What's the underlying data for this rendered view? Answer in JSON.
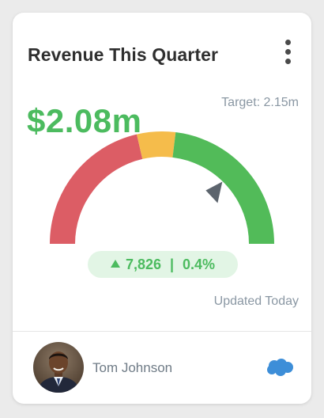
{
  "card": {
    "title": "Revenue This Quarter",
    "menu_icon": "more-vertical-icon"
  },
  "metric": {
    "value": "$2.08m",
    "target": "Target: 2.15m",
    "gauge_fraction": 0.967
  },
  "delta": {
    "icon": "arrow-up-icon",
    "count": "7,826",
    "separator": "|",
    "percent": "0.4%"
  },
  "updated": "Updated Today",
  "owner": {
    "name": "Tom Johnson",
    "avatar_icon": "avatar-photo",
    "source_icon": "salesforce-cloud-icon"
  },
  "colors": {
    "gauge_red": "#dc5d65",
    "gauge_yellow": "#f5bc4b",
    "gauge_green": "#52bb59",
    "accent_green": "#4cbb5f",
    "pill_bg": "#e2f5e5",
    "muted_text": "#8a97a3",
    "pointer": "#5c646d",
    "cloud_blue": "#3d8ed8"
  }
}
